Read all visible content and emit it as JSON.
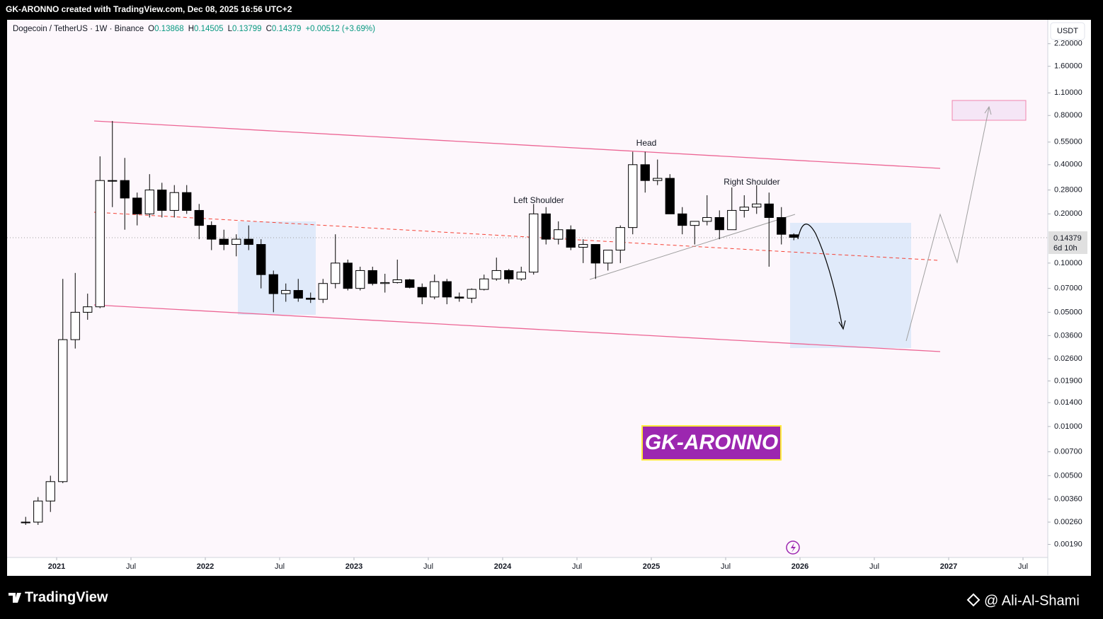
{
  "header": {
    "title": "GK-ARONNO created with TradingView.com, Dec 08, 2025 16:56 UTC+2"
  },
  "chart_data": {
    "type": "candlestick",
    "symbol": "Dogecoin / TetherUS · 1W · Binance",
    "legend": [
      {
        "label": "O",
        "value": 0.13868
      },
      {
        "label": "H",
        "value": 0.14505
      },
      {
        "label": "L",
        "value": 0.13799
      },
      {
        "label": "C",
        "value": 0.14379
      }
    ],
    "change": "+0.00512 (+3.69%)",
    "currency": "USDT",
    "log_scale": true,
    "up_color": "#ffffff",
    "down_color": "#000000",
    "wick_color": "#000000",
    "x": [
      "2020-10",
      "2020-11",
      "2020-12",
      "2021-01",
      "2021-02",
      "2021-03",
      "2021-04",
      "2021-05",
      "2021-06",
      "2021-07",
      "2021-08",
      "2021-09",
      "2021-10",
      "2021-11",
      "2021-12",
      "2022-01",
      "2022-02",
      "2022-03",
      "2022-04",
      "2022-05",
      "2022-06",
      "2022-07",
      "2022-08",
      "2022-09",
      "2022-10",
      "2022-11",
      "2022-12",
      "2023-01",
      "2023-02",
      "2023-03",
      "2023-04",
      "2023-05",
      "2023-06",
      "2023-07",
      "2023-08",
      "2023-09",
      "2023-10",
      "2023-11",
      "2023-12",
      "2024-01",
      "2024-02",
      "2024-03",
      "2024-04",
      "2024-05",
      "2024-06",
      "2024-07",
      "2024-08",
      "2024-09",
      "2024-10",
      "2024-11",
      "2024-12",
      "2025-01",
      "2025-02",
      "2025-03",
      "2025-04",
      "2025-05",
      "2025-06",
      "2025-07",
      "2025-08",
      "2025-09",
      "2025-10",
      "2025-11",
      "2025-12"
    ],
    "open": [
      0.0026,
      0.0026,
      0.0035,
      0.0046,
      0.034,
      0.05,
      0.054,
      0.32,
      0.32,
      0.25,
      0.2,
      0.28,
      0.21,
      0.27,
      0.21,
      0.17,
      0.14,
      0.13,
      0.14,
      0.13,
      0.085,
      0.065,
      0.068,
      0.061,
      0.06,
      0.075,
      0.1,
      0.07,
      0.09,
      0.075,
      0.076,
      0.079,
      0.071,
      0.062,
      0.077,
      0.062,
      0.061,
      0.069,
      0.08,
      0.09,
      0.08,
      0.088,
      0.2,
      0.14,
      0.16,
      0.125,
      0.13,
      0.1,
      0.12,
      0.165,
      0.4,
      0.32,
      0.33,
      0.2,
      0.17,
      0.18,
      0.19,
      0.16,
      0.21,
      0.22,
      0.23,
      0.19,
      0.149
    ],
    "high": [
      0.0028,
      0.0037,
      0.005,
      0.08,
      0.087,
      0.065,
      0.45,
      0.74,
      0.44,
      0.27,
      0.35,
      0.31,
      0.3,
      0.3,
      0.23,
      0.18,
      0.16,
      0.15,
      0.17,
      0.14,
      0.09,
      0.075,
      0.08,
      0.066,
      0.08,
      0.15,
      0.105,
      0.095,
      0.095,
      0.086,
      0.105,
      0.08,
      0.075,
      0.085,
      0.08,
      0.066,
      0.07,
      0.085,
      0.108,
      0.092,
      0.095,
      0.23,
      0.22,
      0.18,
      0.17,
      0.14,
      0.13,
      0.12,
      0.17,
      0.48,
      0.48,
      0.43,
      0.35,
      0.22,
      0.18,
      0.26,
      0.21,
      0.29,
      0.26,
      0.3,
      0.27,
      0.22,
      0.152
    ],
    "low": [
      0.0025,
      0.0025,
      0.003,
      0.0045,
      0.03,
      0.045,
      0.053,
      0.22,
      0.16,
      0.17,
      0.19,
      0.19,
      0.19,
      0.2,
      0.14,
      0.12,
      0.12,
      0.11,
      0.12,
      0.07,
      0.05,
      0.058,
      0.058,
      0.057,
      0.057,
      0.07,
      0.068,
      0.068,
      0.073,
      0.066,
      0.075,
      0.07,
      0.056,
      0.06,
      0.056,
      0.058,
      0.057,
      0.068,
      0.078,
      0.075,
      0.078,
      0.085,
      0.13,
      0.13,
      0.12,
      0.1,
      0.08,
      0.09,
      0.1,
      0.15,
      0.27,
      0.3,
      0.2,
      0.15,
      0.13,
      0.17,
      0.14,
      0.16,
      0.19,
      0.2,
      0.095,
      0.13,
      0.138
    ],
    "close": [
      0.0026,
      0.0035,
      0.0046,
      0.034,
      0.05,
      0.054,
      0.32,
      0.32,
      0.25,
      0.2,
      0.28,
      0.21,
      0.27,
      0.21,
      0.17,
      0.14,
      0.13,
      0.14,
      0.13,
      0.085,
      0.065,
      0.068,
      0.061,
      0.06,
      0.075,
      0.1,
      0.07,
      0.09,
      0.075,
      0.076,
      0.079,
      0.071,
      0.062,
      0.077,
      0.062,
      0.061,
      0.069,
      0.08,
      0.09,
      0.08,
      0.088,
      0.2,
      0.14,
      0.16,
      0.125,
      0.13,
      0.1,
      0.12,
      0.165,
      0.4,
      0.32,
      0.33,
      0.2,
      0.17,
      0.18,
      0.19,
      0.16,
      0.21,
      0.22,
      0.23,
      0.19,
      0.15,
      0.14379
    ],
    "xlim": [
      "2020-09",
      "2027-09"
    ],
    "xticks": [
      {
        "value": "2021-01",
        "label": "2021"
      },
      {
        "value": "2021-07",
        "label": "Jul"
      },
      {
        "value": "2022-01",
        "label": "2022"
      },
      {
        "value": "2022-07",
        "label": "Jul"
      },
      {
        "value": "2023-01",
        "label": "2023"
      },
      {
        "value": "2023-07",
        "label": "Jul"
      },
      {
        "value": "2024-01",
        "label": "2024"
      },
      {
        "value": "2024-07",
        "label": "Jul"
      },
      {
        "value": "2025-01",
        "label": "2025"
      },
      {
        "value": "2025-07",
        "label": "Jul"
      },
      {
        "value": "2026-01",
        "label": "2026"
      },
      {
        "value": "2026-07",
        "label": "Jul"
      },
      {
        "value": "2027-01",
        "label": "2027"
      },
      {
        "value": "2027-07",
        "label": "Jul"
      }
    ],
    "ylim": [
      0.00158,
      3.08
    ],
    "yticks": [
      {
        "value": 2.2,
        "label": "2.20000"
      },
      {
        "value": 1.6,
        "label": "1.60000"
      },
      {
        "value": 1.1,
        "label": "1.10000"
      },
      {
        "value": 0.8,
        "label": "0.80000"
      },
      {
        "value": 0.55,
        "label": "0.55000"
      },
      {
        "value": 0.4,
        "label": "0.40000"
      },
      {
        "value": 0.28,
        "label": "0.28000"
      },
      {
        "value": 0.2,
        "label": "0.20000"
      },
      {
        "value": 0.1,
        "label": "0.10000"
      },
      {
        "value": 0.07,
        "label": "0.07000"
      },
      {
        "value": 0.05,
        "label": "0.05000"
      },
      {
        "value": 0.036,
        "label": "0.03600"
      },
      {
        "value": 0.026,
        "label": "0.02600"
      },
      {
        "value": 0.019,
        "label": "0.01900"
      },
      {
        "value": 0.014,
        "label": "0.01400"
      },
      {
        "value": 0.01,
        "label": "0.01000"
      },
      {
        "value": 0.007,
        "label": "0.00700"
      },
      {
        "value": 0.005,
        "label": "0.00500"
      },
      {
        "value": 0.0036,
        "label": "0.00360"
      },
      {
        "value": 0.0026,
        "label": "0.00260"
      },
      {
        "value": 0.0019,
        "label": "0.00190"
      }
    ],
    "last_price": 0.14379,
    "countdown": "6d 10h",
    "annotations": [
      "Left Shoulder",
      "Head",
      "Right Shoulder"
    ],
    "watermark": "GK-ARONNO"
  },
  "footer": {
    "brand": "TradingView",
    "author": "@ Ali-Al-Shami"
  }
}
